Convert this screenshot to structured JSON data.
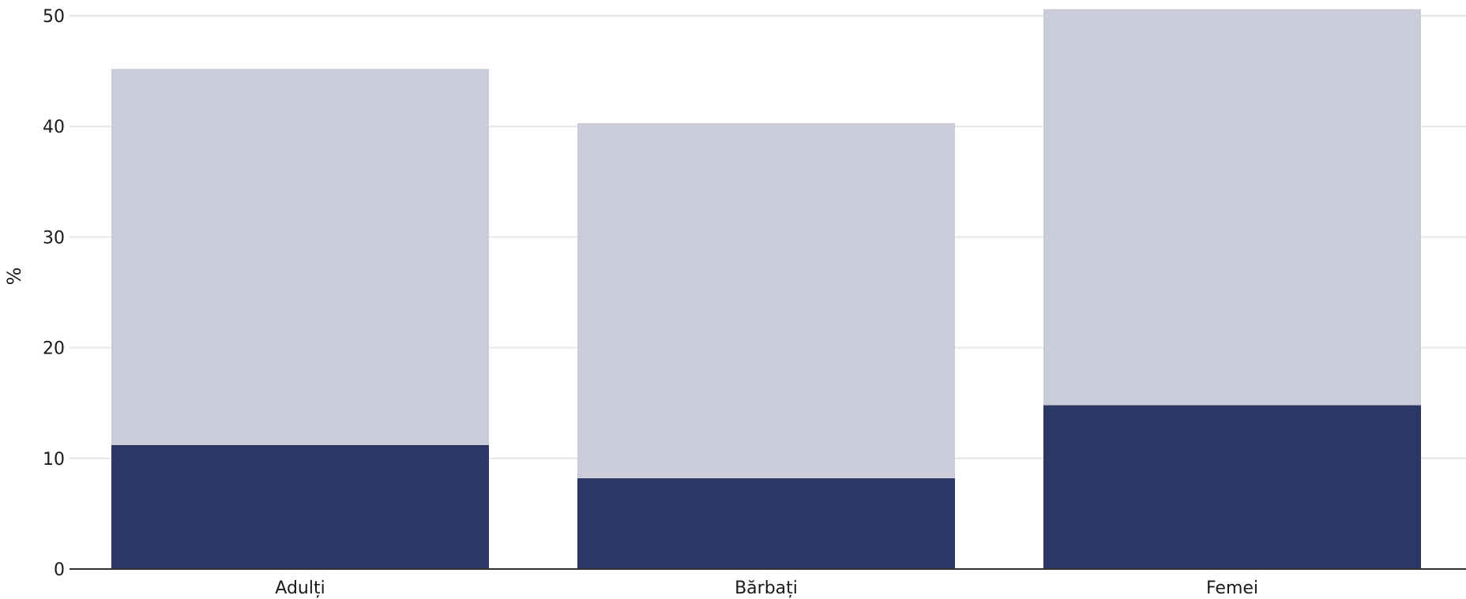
{
  "chart_data": {
    "type": "bar",
    "stacked": true,
    "categories": [
      "Adulți",
      "Bărbați",
      "Femei"
    ],
    "series": [
      {
        "values": [
          11.2,
          8.2,
          14.8
        ],
        "color": "#2b3764"
      },
      {
        "values": [
          34.0,
          32.1,
          35.8
        ],
        "color": "#cacdd9"
      }
    ],
    "title": "",
    "xlabel": "",
    "ylabel": "%",
    "ylim": [
      0,
      50
    ],
    "yticks": [
      0,
      10,
      20,
      30,
      40,
      50
    ],
    "grid": true,
    "legend": "none"
  }
}
